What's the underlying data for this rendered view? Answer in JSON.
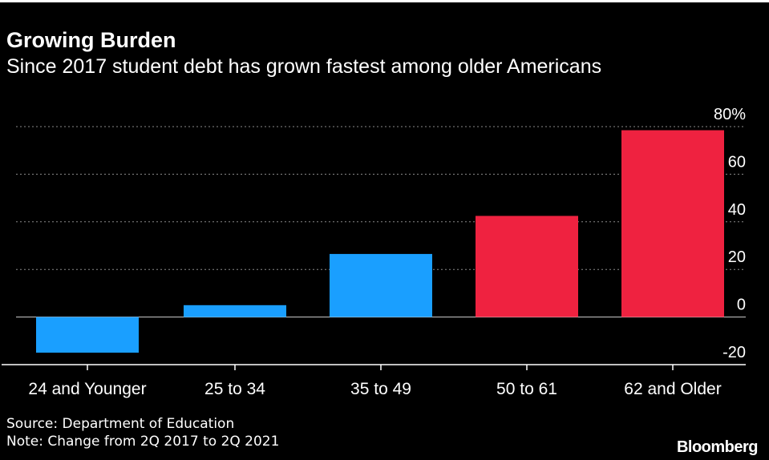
{
  "header": {
    "title": "Growing Burden",
    "subtitle": "Since 2017 student debt has grown fastest among older Americans"
  },
  "footer": {
    "source": "Source: Department of Education",
    "note": "Note: Change from 2Q 2017 to 2Q 2021",
    "logo": "Bloomberg"
  },
  "colors": {
    "background": "#000000",
    "blue": "#1a9fff",
    "red": "#ef2240",
    "grid": "#8a8a8a"
  },
  "chart_data": {
    "type": "bar",
    "categories": [
      "24 and Younger",
      "25 to 34",
      "35 to 49",
      "50 to 61",
      "62 and Older"
    ],
    "values": [
      -15,
      5,
      26.5,
      42.5,
      78.5
    ],
    "bar_colors": [
      "blue",
      "blue",
      "blue",
      "red",
      "red"
    ],
    "title": "Growing Burden",
    "subtitle": "Since 2017 student debt has grown fastest among older Americans",
    "ylim": [
      -20,
      80
    ],
    "yticks": [
      -20,
      0,
      20,
      40,
      60,
      80
    ],
    "ytick_labels": [
      "-20",
      "0",
      "20",
      "40",
      "60",
      "80%"
    ],
    "y_axis_side": "right",
    "grid": true
  }
}
